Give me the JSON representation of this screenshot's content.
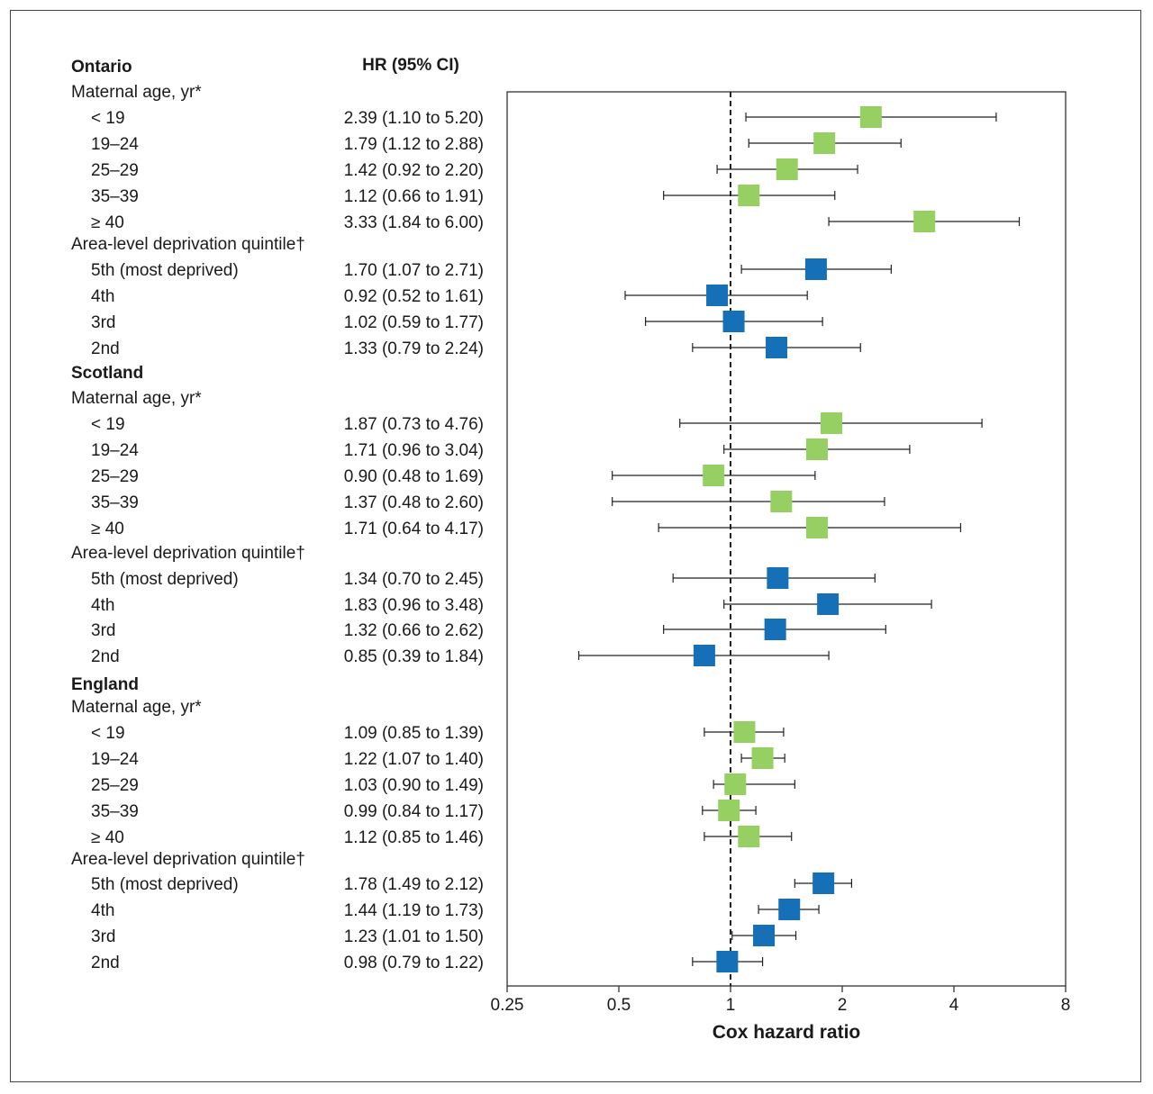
{
  "chart_data": {
    "type": "forest",
    "column_header": "HR (95% CI)",
    "xlabel": "Cox hazard ratio",
    "x_scale": "log2",
    "xlim": [
      0.25,
      8
    ],
    "x_ticks": [
      "0.25",
      "0.5",
      "1",
      "2",
      "4",
      "8"
    ],
    "reference_line": 1,
    "colors": {
      "maternal_age": "#96d062",
      "deprivation": "#1670b8"
    },
    "groups": [
      {
        "name": "Ontario",
        "subgroups": [
          {
            "name": "Maternal age, yr*",
            "color_key": "maternal_age",
            "rows": [
              {
                "label": "< 19",
                "text": "2.39 (1.10 to 5.20)",
                "hr": 2.39,
                "lo": 1.1,
                "hi": 5.2
              },
              {
                "label": "19–24",
                "text": "1.79 (1.12 to 2.88)",
                "hr": 1.79,
                "lo": 1.12,
                "hi": 2.88
              },
              {
                "label": "25–29",
                "text": "1.42 (0.92 to 2.20)",
                "hr": 1.42,
                "lo": 0.92,
                "hi": 2.2
              },
              {
                "label": "35–39",
                "text": "1.12 (0.66 to 1.91)",
                "hr": 1.12,
                "lo": 0.66,
                "hi": 1.91
              },
              {
                "label": "≥ 40",
                "text": "3.33 (1.84 to 6.00)",
                "hr": 3.33,
                "lo": 1.84,
                "hi": 6.0
              }
            ]
          },
          {
            "name": "Area-level deprivation quintile†",
            "color_key": "deprivation",
            "rows": [
              {
                "label": "5th (most deprived)",
                "text": "1.70 (1.07 to 2.71)",
                "hr": 1.7,
                "lo": 1.07,
                "hi": 2.71
              },
              {
                "label": "4th",
                "text": "0.92 (0.52 to 1.61)",
                "hr": 0.92,
                "lo": 0.52,
                "hi": 1.61
              },
              {
                "label": "3rd",
                "text": "1.02 (0.59 to 1.77)",
                "hr": 1.02,
                "lo": 0.59,
                "hi": 1.77
              },
              {
                "label": "2nd",
                "text": "1.33 (0.79 to 2.24)",
                "hr": 1.33,
                "lo": 0.79,
                "hi": 2.24
              }
            ]
          }
        ]
      },
      {
        "name": "Scotland",
        "subgroups": [
          {
            "name": "Maternal age, yr*",
            "color_key": "maternal_age",
            "rows": [
              {
                "label": "< 19",
                "text": "1.87 (0.73 to 4.76)",
                "hr": 1.87,
                "lo": 0.73,
                "hi": 4.76
              },
              {
                "label": "19–24",
                "text": "1.71 (0.96 to 3.04)",
                "hr": 1.71,
                "lo": 0.96,
                "hi": 3.04
              },
              {
                "label": "25–29",
                "text": "0.90 (0.48 to 1.69)",
                "hr": 0.9,
                "lo": 0.48,
                "hi": 1.69
              },
              {
                "label": "35–39",
                "text": "1.37 (0.48 to 2.60)",
                "hr": 1.37,
                "lo": 0.48,
                "hi": 2.6
              },
              {
                "label": "≥ 40",
                "text": "1.71 (0.64 to 4.17)",
                "hr": 1.71,
                "lo": 0.64,
                "hi": 4.17
              }
            ]
          },
          {
            "name": "Area-level deprivation quintile†",
            "color_key": "deprivation",
            "rows": [
              {
                "label": "5th (most deprived)",
                "text": "1.34 (0.70 to 2.45)",
                "hr": 1.34,
                "lo": 0.7,
                "hi": 2.45
              },
              {
                "label": "4th",
                "text": "1.83 (0.96 to 3.48)",
                "hr": 1.83,
                "lo": 0.96,
                "hi": 3.48
              },
              {
                "label": "3rd",
                "text": "1.32 (0.66 to 2.62)",
                "hr": 1.32,
                "lo": 0.66,
                "hi": 2.62
              },
              {
                "label": "2nd",
                "text": "0.85 (0.39 to 1.84)",
                "hr": 0.85,
                "lo": 0.39,
                "hi": 1.84
              }
            ]
          }
        ]
      },
      {
        "name": "England",
        "subgroups": [
          {
            "name": "Maternal age, yr*",
            "color_key": "maternal_age",
            "rows": [
              {
                "label": "< 19",
                "text": "1.09 (0.85 to 1.39)",
                "hr": 1.09,
                "lo": 0.85,
                "hi": 1.39
              },
              {
                "label": "19–24",
                "text": "1.22 (1.07 to 1.40)",
                "hr": 1.22,
                "lo": 1.07,
                "hi": 1.4
              },
              {
                "label": "25–29",
                "text": "1.03 (0.90 to 1.49)",
                "hr": 1.03,
                "lo": 0.9,
                "hi": 1.49
              },
              {
                "label": "35–39",
                "text": "0.99 (0.84 to 1.17)",
                "hr": 0.99,
                "lo": 0.84,
                "hi": 1.17
              },
              {
                "label": "≥ 40",
                "text": "1.12 (0.85 to 1.46)",
                "hr": 1.12,
                "lo": 0.85,
                "hi": 1.46
              }
            ]
          },
          {
            "name": "Area-level deprivation quintile†",
            "color_key": "deprivation",
            "rows": [
              {
                "label": "5th (most deprived)",
                "text": "1.78 (1.49 to 2.12)",
                "hr": 1.78,
                "lo": 1.49,
                "hi": 2.12
              },
              {
                "label": "4th",
                "text": "1.44 (1.19 to 1.73)",
                "hr": 1.44,
                "lo": 1.19,
                "hi": 1.73
              },
              {
                "label": "3rd",
                "text": "1.23 (1.01 to 1.50)",
                "hr": 1.23,
                "lo": 1.01,
                "hi": 1.5
              },
              {
                "label": "2nd",
                "text": "0.98 (0.79 to 1.22)",
                "hr": 0.98,
                "lo": 0.79,
                "hi": 1.22
              }
            ]
          }
        ]
      }
    ]
  }
}
